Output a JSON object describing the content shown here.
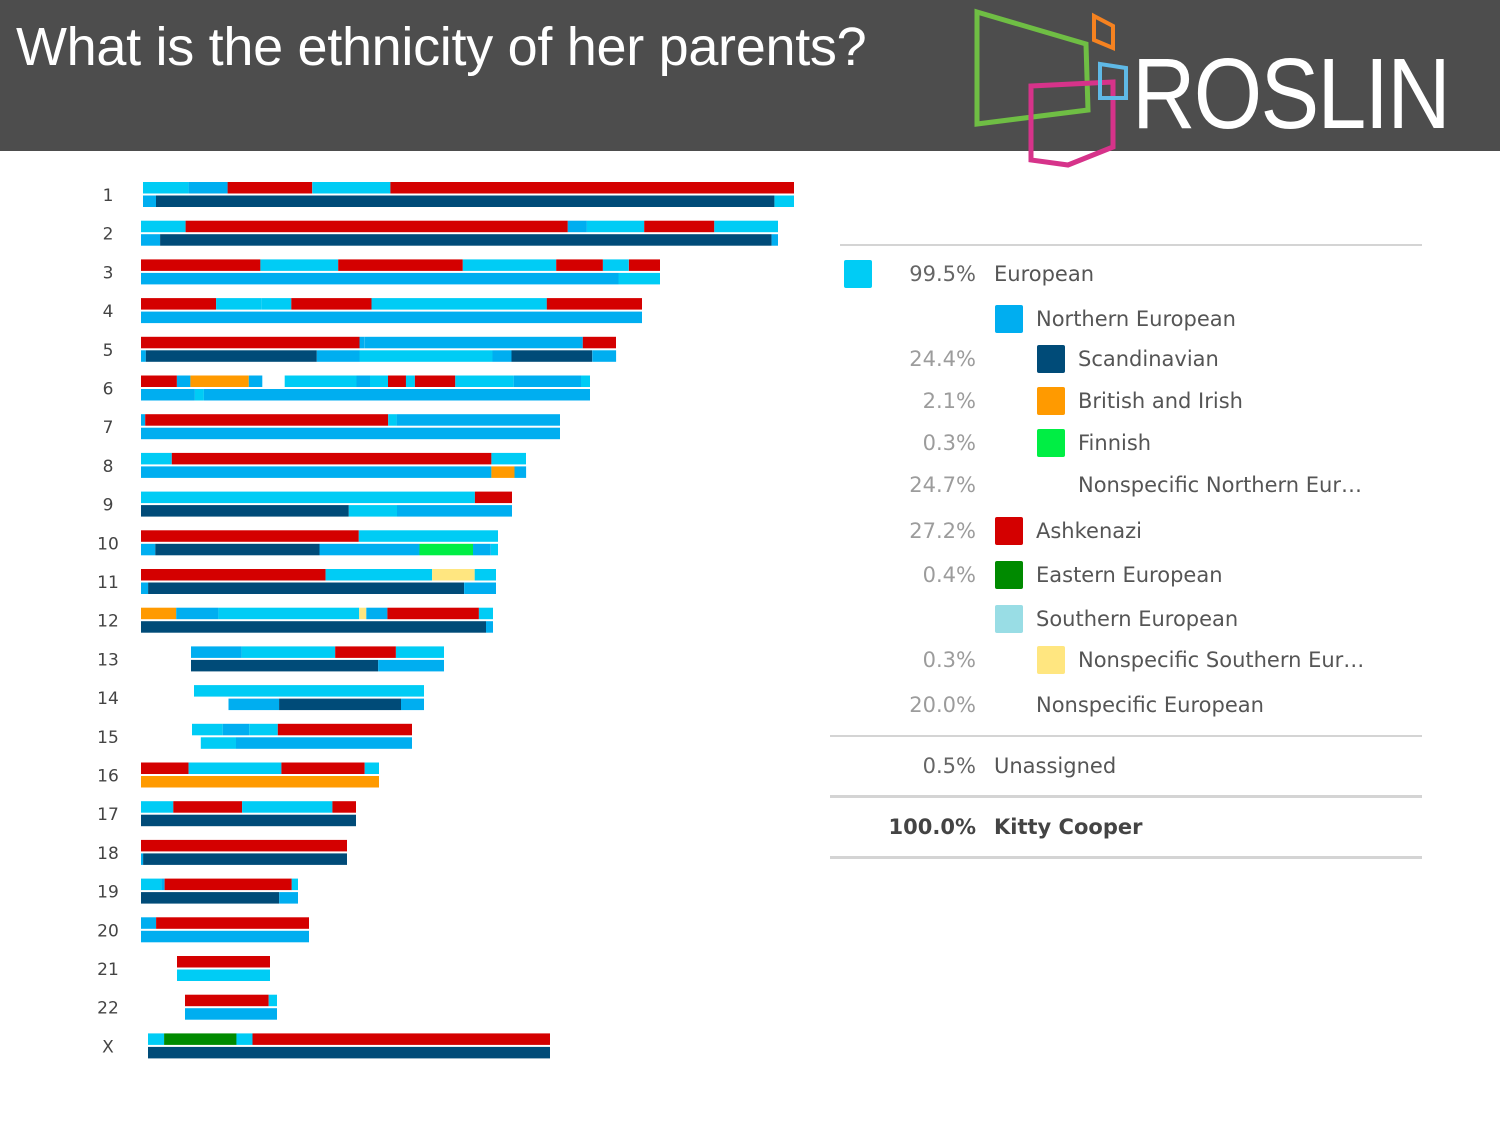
{
  "slide": {
    "title": "What is the ethnicity of her parents?",
    "logo_text": "ROSLIN"
  },
  "colors": {
    "european": "#00ccf5",
    "northern": "#00aef0",
    "scandinavian": "#004b78",
    "british_irish": "#ff9a00",
    "finnish": "#00ee44",
    "ashkenazi": "#d40000",
    "eastern": "#008a00",
    "southern": "#99dde5",
    "nonspecific_southern": "#ffe680"
  },
  "legend": {
    "rows": [
      {
        "pct": "99.5%",
        "label": "European",
        "swatch": "european",
        "level": 0
      },
      {
        "pct": "",
        "label": "Northern European",
        "swatch": "northern",
        "level": 1
      },
      {
        "pct": "24.4%",
        "label": "Scandinavian",
        "swatch": "scandinavian",
        "level": 2
      },
      {
        "pct": "2.1%",
        "label": "British and Irish",
        "swatch": "british_irish",
        "level": 2
      },
      {
        "pct": "0.3%",
        "label": "Finnish",
        "swatch": "finnish",
        "level": 2
      },
      {
        "pct": "24.7%",
        "label": "Nonspecific Northern Eur…",
        "swatch": "",
        "level": 2
      },
      {
        "pct": "27.2%",
        "label": "Ashkenazi",
        "swatch": "ashkenazi",
        "level": 1
      },
      {
        "pct": "0.4%",
        "label": "Eastern European",
        "swatch": "eastern",
        "level": 1
      },
      {
        "pct": "",
        "label": "Southern European",
        "swatch": "southern",
        "level": 1
      },
      {
        "pct": "0.3%",
        "label": "Nonspecific Southern Eur…",
        "swatch": "nonspecific_southern",
        "level": 2
      },
      {
        "pct": "20.0%",
        "label": "Nonspecific European",
        "swatch": "",
        "level": 1
      }
    ],
    "unassigned": {
      "pct": "0.5%",
      "label": "Unassigned"
    },
    "total": {
      "pct": "100.0%",
      "label": "Kitty Cooper"
    }
  },
  "chromosomes": [
    {
      "label": "1",
      "top": [
        [
          "european",
          0,
          0.07
        ],
        [
          "northern",
          0.07,
          0.13
        ],
        [
          "ashkenazi",
          0.13,
          0.26
        ],
        [
          "european",
          0.26,
          0.38
        ],
        [
          "ashkenazi",
          0.38,
          1.0
        ]
      ],
      "bottom": [
        [
          "northern",
          0,
          0.02
        ],
        [
          "scandinavian",
          0.02,
          0.97
        ],
        [
          "european",
          0.97,
          1.0
        ]
      ]
    },
    {
      "label": "2",
      "top": [
        [
          "european",
          0,
          0.07
        ],
        [
          "ashkenazi",
          0.07,
          0.67
        ],
        [
          "northern",
          0.67,
          0.7
        ],
        [
          "european",
          0.7,
          0.79
        ],
        [
          "ashkenazi",
          0.79,
          0.9
        ],
        [
          "european",
          0.9,
          1.0
        ]
      ],
      "bottom": [
        [
          "northern",
          0,
          0.03
        ],
        [
          "scandinavian",
          0.03,
          0.99
        ],
        [
          "northern",
          0.99,
          1.0
        ]
      ]
    },
    {
      "label": "3",
      "top": [
        [
          "ashkenazi",
          0,
          0.23
        ],
        [
          "european",
          0.23,
          0.38
        ],
        [
          "ashkenazi",
          0.38,
          0.62
        ],
        [
          "european",
          0.62,
          0.8
        ],
        [
          "ashkenazi",
          0.8,
          0.89
        ],
        [
          "european",
          0.89,
          0.94
        ],
        [
          "ashkenazi",
          0.94,
          1.0
        ]
      ],
      "bottom": [
        [
          "northern",
          0,
          0.92
        ],
        [
          "european",
          0.92,
          1.0
        ]
      ]
    },
    {
      "label": "4",
      "top": [
        [
          "ashkenazi",
          0,
          0.15
        ],
        [
          "european",
          0.15,
          0.24
        ],
        [
          "european",
          0.24,
          0.3
        ],
        [
          "ashkenazi",
          0.3,
          0.46
        ],
        [
          "european",
          0.46,
          0.81
        ],
        [
          "ashkenazi",
          0.81,
          1.0
        ]
      ],
      "bottom": [
        [
          "northern",
          0,
          0.02
        ],
        [
          "northern",
          0.02,
          1.0
        ]
      ]
    },
    {
      "label": "5",
      "top": [
        [
          "ashkenazi",
          0,
          0.46
        ],
        [
          "northern",
          0.46,
          0.47
        ],
        [
          "northern",
          0.47,
          0.93
        ],
        [
          "ashkenazi",
          0.93,
          1.0
        ]
      ],
      "bottom": [
        [
          "northern",
          0,
          0.01
        ],
        [
          "scandinavian",
          0.01,
          0.37
        ],
        [
          "northern",
          0.37,
          0.46
        ],
        [
          "european",
          0.46,
          0.74
        ],
        [
          "northern",
          0.74,
          0.78
        ],
        [
          "scandinavian",
          0.78,
          0.95
        ],
        [
          "northern",
          0.95,
          1.0
        ]
      ]
    },
    {
      "label": "6",
      "top": [
        [
          "ashkenazi",
          0,
          0.08
        ],
        [
          "northern",
          0.08,
          0.11
        ],
        [
          "british_irish",
          0.11,
          0.24
        ],
        [
          "northern",
          0.24,
          0.27
        ],
        [
          "gap",
          0.27,
          0.32
        ],
        [
          "european",
          0.32,
          0.48
        ],
        [
          "northern",
          0.48,
          0.51
        ],
        [
          "european",
          0.51,
          0.55
        ],
        [
          "ashkenazi",
          0.55,
          0.59
        ],
        [
          "european",
          0.59,
          0.61
        ],
        [
          "ashkenazi",
          0.61,
          0.7
        ],
        [
          "european",
          0.7,
          0.83
        ],
        [
          "northern",
          0.83,
          0.98
        ],
        [
          "european",
          0.98,
          1.0
        ]
      ],
      "bottom": [
        [
          "northern",
          0,
          0.12
        ],
        [
          "european",
          0.12,
          0.14
        ],
        [
          "northern",
          0.14,
          1.0
        ]
      ]
    },
    {
      "label": "7",
      "top": [
        [
          "northern",
          0,
          0.01
        ],
        [
          "ashkenazi",
          0.01,
          0.59
        ],
        [
          "european",
          0.59,
          0.61
        ],
        [
          "northern",
          0.61,
          1.0
        ]
      ],
      "bottom": [
        [
          "northern",
          0,
          1.0
        ]
      ]
    },
    {
      "label": "8",
      "top": [
        [
          "european",
          0,
          0.08
        ],
        [
          "ashkenazi",
          0.08,
          0.91
        ],
        [
          "european",
          0.91,
          1.0
        ]
      ],
      "bottom": [
        [
          "northern",
          0,
          0.91
        ],
        [
          "british_irish",
          0.91,
          0.97
        ],
        [
          "northern",
          0.97,
          1.0
        ]
      ]
    },
    {
      "label": "9",
      "top": [
        [
          "european",
          0,
          0.9
        ],
        [
          "ashkenazi",
          0.9,
          1.0
        ]
      ],
      "bottom": [
        [
          "scandinavian",
          0,
          0.56
        ],
        [
          "european",
          0.56,
          0.69
        ],
        [
          "northern",
          0.69,
          1.0
        ]
      ]
    },
    {
      "label": "10",
      "top": [
        [
          "ashkenazi",
          0,
          0.61
        ],
        [
          "european",
          0.61,
          1.0
        ]
      ],
      "bottom": [
        [
          "northern",
          0,
          0.04
        ],
        [
          "scandinavian",
          0.04,
          0.5
        ],
        [
          "northern",
          0.5,
          0.78
        ],
        [
          "finnish",
          0.78,
          0.93
        ],
        [
          "northern",
          0.93,
          0.98
        ],
        [
          "european",
          0.98,
          1.0
        ]
      ]
    },
    {
      "label": "11",
      "top": [
        [
          "ashkenazi",
          0,
          0.52
        ],
        [
          "european",
          0.52,
          0.82
        ],
        [
          "nonspecific_southern",
          0.82,
          0.94
        ],
        [
          "european",
          0.94,
          1.0
        ]
      ],
      "bottom": [
        [
          "northern",
          0,
          0.02
        ],
        [
          "scandinavian",
          0.02,
          0.91
        ],
        [
          "northern",
          0.91,
          1.0
        ]
      ]
    },
    {
      "label": "12",
      "top": [
        [
          "british_irish",
          0,
          0.1
        ],
        [
          "northern",
          0.1,
          0.22
        ],
        [
          "european",
          0.22,
          0.62
        ],
        [
          "nonspecific_southern",
          0.62,
          0.64
        ],
        [
          "northern",
          0.64,
          0.7
        ],
        [
          "ashkenazi",
          0.7,
          0.96
        ],
        [
          "european",
          0.96,
          1.0
        ]
      ],
      "bottom": [
        [
          "scandinavian",
          0,
          0.98
        ],
        [
          "northern",
          0.98,
          1.0
        ]
      ]
    },
    {
      "label": "13",
      "top": [
        [
          "northern",
          0,
          0.2
        ],
        [
          "european",
          0.2,
          0.57
        ],
        [
          "ashkenazi",
          0.57,
          0.81
        ],
        [
          "european",
          0.81,
          1.0
        ]
      ],
      "bottom": [
        [
          "scandinavian",
          0,
          0.74
        ],
        [
          "northern",
          0.74,
          1.0
        ]
      ]
    },
    {
      "label": "14",
      "top": [
        [
          "european",
          0,
          1.0
        ]
      ],
      "bottom": [
        [
          "gap",
          0,
          0.15
        ],
        [
          "northern",
          0.15,
          0.37
        ],
        [
          "scandinavian",
          0.37,
          0.9
        ],
        [
          "northern",
          0.9,
          1.0
        ]
      ]
    },
    {
      "label": "15",
      "top": [
        [
          "european",
          0,
          0.14
        ],
        [
          "northern",
          0.14,
          0.26
        ],
        [
          "european",
          0.26,
          0.39
        ],
        [
          "ashkenazi",
          0.39,
          1.0
        ]
      ],
      "bottom": [
        [
          "gap",
          0,
          0.04
        ],
        [
          "european",
          0.04,
          0.2
        ],
        [
          "northern",
          0.2,
          1.0
        ]
      ]
    },
    {
      "label": "16",
      "top": [
        [
          "ashkenazi",
          0,
          0.2
        ],
        [
          "european",
          0.2,
          0.59
        ],
        [
          "ashkenazi",
          0.59,
          0.94
        ],
        [
          "european",
          0.94,
          1.0
        ]
      ],
      "bottom": [
        [
          "british_irish",
          0,
          1.0
        ]
      ]
    },
    {
      "label": "17",
      "top": [
        [
          "european",
          0,
          0.15
        ],
        [
          "ashkenazi",
          0.15,
          0.47
        ],
        [
          "european",
          0.47,
          0.89
        ],
        [
          "ashkenazi",
          0.89,
          1.0
        ]
      ],
      "bottom": [
        [
          "scandinavian",
          0,
          1.0
        ]
      ]
    },
    {
      "label": "18",
      "top": [
        [
          "ashkenazi",
          0,
          1.0
        ]
      ],
      "bottom": [
        [
          "northern",
          0,
          0.01
        ],
        [
          "scandinavian",
          0.01,
          1.0
        ]
      ]
    },
    {
      "label": "19",
      "top": [
        [
          "european",
          0,
          0.13
        ],
        [
          "northern",
          0.13,
          0.15
        ],
        [
          "ashkenazi",
          0.15,
          0.96
        ],
        [
          "european",
          0.96,
          1.0
        ]
      ],
      "bottom": [
        [
          "scandinavian",
          0,
          0.88
        ],
        [
          "northern",
          0.88,
          1.0
        ]
      ]
    },
    {
      "label": "20",
      "top": [
        [
          "northern",
          0,
          0.09
        ],
        [
          "ashkenazi",
          0.09,
          1.0
        ]
      ],
      "bottom": [
        [
          "northern",
          0,
          1.0
        ]
      ]
    },
    {
      "label": "21",
      "top": [
        [
          "ashkenazi",
          0,
          1.0
        ]
      ],
      "bottom": [
        [
          "european",
          0,
          1.0
        ]
      ]
    },
    {
      "label": "22",
      "top": [
        [
          "ashkenazi",
          0,
          0.91
        ],
        [
          "european",
          0.91,
          1.0
        ]
      ],
      "bottom": [
        [
          "northern",
          0,
          1.0
        ]
      ]
    },
    {
      "label": "X",
      "top": [
        [
          "european",
          0,
          0.04
        ],
        [
          "eastern",
          0.04,
          0.22
        ],
        [
          "european",
          0.22,
          0.26
        ],
        [
          "ashkenazi",
          0.26,
          1.0
        ]
      ],
      "bottom": [
        [
          "scandinavian",
          0,
          1.0
        ]
      ]
    }
  ]
}
